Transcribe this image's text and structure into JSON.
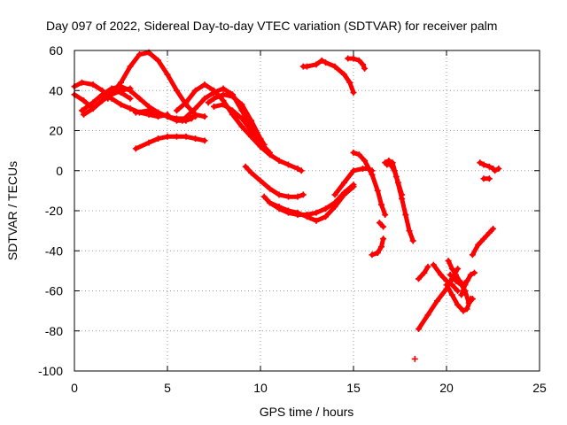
{
  "chart_data": {
    "type": "scatter",
    "title": "Day 097 of 2022, Sidereal Day-to-day VTEC variation (SDTVAR) for receiver palm",
    "xlabel": "GPS time / hours",
    "ylabel": "SDTVAR / TECUs",
    "xlim": [
      0,
      25
    ],
    "ylim": [
      -100,
      60
    ],
    "xticks": [
      0,
      5,
      10,
      15,
      20,
      25
    ],
    "yticks": [
      -100,
      -80,
      -60,
      -40,
      -20,
      0,
      20,
      40,
      60
    ],
    "grid": true,
    "marker": "plus",
    "color": "#ff0000",
    "series": [
      {
        "points": [
          [
            0,
            38
          ],
          [
            0.5,
            35
          ],
          [
            1,
            31
          ],
          [
            1.5,
            35
          ],
          [
            2,
            40
          ],
          [
            2.5,
            39
          ],
          [
            3,
            36
          ]
        ]
      },
      {
        "points": [
          [
            0,
            42
          ],
          [
            0.4,
            44
          ],
          [
            1,
            43
          ],
          [
            1.5,
            40
          ],
          [
            2,
            36
          ],
          [
            2.5,
            33
          ],
          [
            3,
            31
          ],
          [
            3.5,
            29
          ],
          [
            4,
            28
          ],
          [
            4.5,
            27
          ],
          [
            5,
            28
          ]
        ]
      },
      {
        "points": [
          [
            0.4,
            30
          ],
          [
            1,
            34
          ],
          [
            1.5,
            38
          ],
          [
            2,
            41
          ],
          [
            2.5,
            42
          ],
          [
            3,
            40
          ],
          [
            3.5,
            36
          ],
          [
            4,
            32
          ],
          [
            4.5,
            29
          ],
          [
            5,
            27
          ],
          [
            5.5,
            26
          ],
          [
            6,
            26
          ],
          [
            6.5,
            27
          ]
        ]
      },
      {
        "points": [
          [
            0.5,
            28
          ],
          [
            1,
            31
          ],
          [
            1.5,
            35
          ],
          [
            2,
            38
          ],
          [
            2.5,
            40
          ],
          [
            3,
            41
          ]
        ]
      },
      {
        "points": [
          [
            1.8,
            36
          ],
          [
            2.5,
            44
          ],
          [
            3,
            52
          ],
          [
            3.5,
            58
          ],
          [
            4,
            59
          ],
          [
            4.5,
            55
          ],
          [
            5,
            48
          ],
          [
            5.5,
            40
          ],
          [
            6,
            33
          ],
          [
            6.5,
            28
          ],
          [
            7,
            27
          ]
        ]
      },
      {
        "points": [
          [
            3.3,
            29
          ],
          [
            4,
            30
          ],
          [
            4.5,
            29
          ],
          [
            5,
            27
          ],
          [
            5.5,
            25
          ],
          [
            6,
            25
          ],
          [
            6.3,
            26
          ]
        ]
      },
      {
        "points": [
          [
            3.3,
            11
          ],
          [
            4,
            14
          ],
          [
            4.5,
            16
          ],
          [
            5,
            17
          ],
          [
            5.5,
            17
          ],
          [
            6,
            17
          ],
          [
            6.5,
            16
          ],
          [
            7,
            15
          ]
        ]
      },
      {
        "points": [
          [
            5.5,
            30
          ],
          [
            6,
            34
          ],
          [
            6.5,
            40
          ],
          [
            7,
            43
          ],
          [
            7.5,
            40
          ],
          [
            8,
            35
          ],
          [
            8.5,
            28
          ],
          [
            9,
            22
          ],
          [
            9.5,
            17
          ],
          [
            10,
            12
          ],
          [
            10.5,
            8
          ],
          [
            11,
            5
          ],
          [
            11.5,
            3
          ],
          [
            12,
            1
          ],
          [
            12.2,
            0
          ]
        ]
      },
      {
        "points": [
          [
            5.8,
            25
          ],
          [
            6.5,
            31
          ],
          [
            7,
            36
          ],
          [
            7.5,
            39
          ],
          [
            8,
            41
          ],
          [
            8.5,
            38
          ],
          [
            9,
            30
          ],
          [
            9.5,
            22
          ],
          [
            10,
            14
          ],
          [
            10.3,
            10
          ]
        ]
      },
      {
        "points": [
          [
            7.2,
            34
          ],
          [
            7.5,
            36
          ],
          [
            8,
            38
          ],
          [
            8.5,
            37
          ],
          [
            9,
            33
          ],
          [
            9.5,
            25
          ],
          [
            10,
            16
          ],
          [
            10.2,
            13
          ]
        ]
      },
      {
        "points": [
          [
            7.5,
            32
          ],
          [
            8,
            33
          ],
          [
            8.5,
            30
          ],
          [
            9,
            26
          ],
          [
            9.5,
            20
          ],
          [
            10,
            14
          ],
          [
            10.5,
            9
          ]
        ]
      },
      {
        "points": [
          [
            9.2,
            2
          ],
          [
            9.5,
            -1
          ],
          [
            10,
            -5
          ],
          [
            10.5,
            -9
          ],
          [
            11,
            -12
          ],
          [
            11.5,
            -13
          ],
          [
            12,
            -13
          ],
          [
            12.3,
            -12
          ]
        ]
      },
      {
        "points": [
          [
            10.2,
            -13
          ],
          [
            10.5,
            -16
          ],
          [
            11,
            -19
          ],
          [
            11.5,
            -21
          ],
          [
            12,
            -22
          ],
          [
            12.5,
            -22
          ],
          [
            13,
            -21
          ],
          [
            13.5,
            -19
          ],
          [
            14,
            -16
          ],
          [
            14.5,
            -11
          ],
          [
            15,
            -7
          ]
        ]
      },
      {
        "points": [
          [
            10.5,
            -16
          ],
          [
            11,
            -18
          ],
          [
            11.5,
            -20
          ],
          [
            12,
            -21
          ],
          [
            12.5,
            -23
          ],
          [
            13,
            -25
          ],
          [
            13.5,
            -23
          ],
          [
            14,
            -18
          ],
          [
            14.5,
            -12
          ],
          [
            15,
            -8
          ]
        ]
      },
      {
        "points": [
          [
            12.3,
            52
          ],
          [
            12.5,
            52
          ],
          [
            13,
            53
          ],
          [
            13.3,
            55
          ],
          [
            13.5,
            54
          ],
          [
            14,
            52
          ],
          [
            14.5,
            48
          ],
          [
            14.8,
            44
          ],
          [
            15,
            39
          ]
        ]
      },
      {
        "points": [
          [
            14.7,
            56
          ],
          [
            15,
            56
          ],
          [
            15.3,
            55
          ],
          [
            15.5,
            53
          ],
          [
            15.6,
            51
          ]
        ]
      },
      {
        "points": [
          [
            14,
            -12
          ],
          [
            14.5,
            -6
          ],
          [
            15,
            0
          ],
          [
            15.5,
            1
          ],
          [
            15.8,
            1
          ],
          [
            16,
            0
          ]
        ]
      },
      {
        "points": [
          [
            15,
            9
          ],
          [
            15.3,
            8
          ],
          [
            15.6,
            5
          ],
          [
            16,
            -2
          ],
          [
            16.3,
            -10
          ],
          [
            16.5,
            -17
          ],
          [
            16.7,
            -22
          ]
        ]
      },
      {
        "points": [
          [
            16,
            -42
          ],
          [
            16.3,
            -41
          ],
          [
            16.5,
            -38
          ],
          [
            16.6,
            -34
          ]
        ]
      },
      {
        "points": [
          [
            16.4,
            -26
          ],
          [
            16.6,
            -28
          ]
        ]
      },
      {
        "points": [
          [
            16.7,
            4
          ],
          [
            16.9,
            5
          ],
          [
            17.1,
            4
          ],
          [
            17.3,
            -3
          ],
          [
            17.6,
            -14
          ],
          [
            17.8,
            -22
          ],
          [
            18,
            -30
          ],
          [
            18.2,
            -35
          ]
        ]
      },
      {
        "points": [
          [
            16.8,
            3
          ],
          [
            17,
            3
          ],
          [
            17.2,
            0
          ],
          [
            17.4,
            -6
          ],
          [
            17.6,
            -12
          ]
        ]
      },
      {
        "points": [
          [
            18.5,
            -79
          ],
          [
            19,
            -72
          ],
          [
            19.5,
            -65
          ],
          [
            20,
            -59
          ],
          [
            20.3,
            -54
          ],
          [
            20.6,
            -49
          ]
        ]
      },
      {
        "points": [
          [
            18.5,
            -54
          ],
          [
            18.8,
            -51
          ],
          [
            19,
            -48
          ]
        ]
      },
      {
        "points": [
          [
            19.3,
            -47
          ],
          [
            19.7,
            -52
          ],
          [
            20,
            -55
          ],
          [
            20.3,
            -57
          ],
          [
            20.6,
            -60
          ]
        ]
      },
      {
        "points": [
          [
            20,
            -57
          ],
          [
            20.3,
            -62
          ],
          [
            20.6,
            -67
          ],
          [
            20.9,
            -70
          ],
          [
            21.1,
            -69
          ],
          [
            21.3,
            -64
          ]
        ]
      },
      {
        "points": [
          [
            20.1,
            -45
          ],
          [
            20.3,
            -49
          ],
          [
            20.5,
            -52
          ],
          [
            20.7,
            -55
          ],
          [
            20.9,
            -57
          ],
          [
            21.1,
            -55
          ]
        ]
      },
      {
        "points": [
          [
            20.8,
            -62
          ],
          [
            21,
            -57
          ],
          [
            21.3,
            -52
          ],
          [
            21.5,
            -51
          ]
        ]
      },
      {
        "points": [
          [
            20.2,
            -52
          ],
          [
            20.5,
            -55
          ],
          [
            20.8,
            -57
          ],
          [
            21,
            -60
          ],
          [
            21.2,
            -66
          ],
          [
            21.4,
            -64
          ]
        ]
      },
      {
        "points": [
          [
            21.4,
            -42
          ],
          [
            21.7,
            -37
          ],
          [
            22,
            -34
          ],
          [
            22.3,
            -31
          ],
          [
            22.5,
            -29
          ]
        ]
      },
      {
        "points": [
          [
            21.8,
            4
          ],
          [
            22,
            3
          ],
          [
            22.3,
            2
          ],
          [
            22.5,
            1
          ]
        ]
      },
      {
        "points": [
          [
            22,
            -4
          ],
          [
            22.3,
            -4
          ]
        ]
      },
      {
        "points": [
          [
            22.6,
            0
          ],
          [
            22.8,
            1
          ]
        ]
      },
      {
        "points": [
          [
            18.3,
            -94
          ]
        ]
      }
    ]
  }
}
